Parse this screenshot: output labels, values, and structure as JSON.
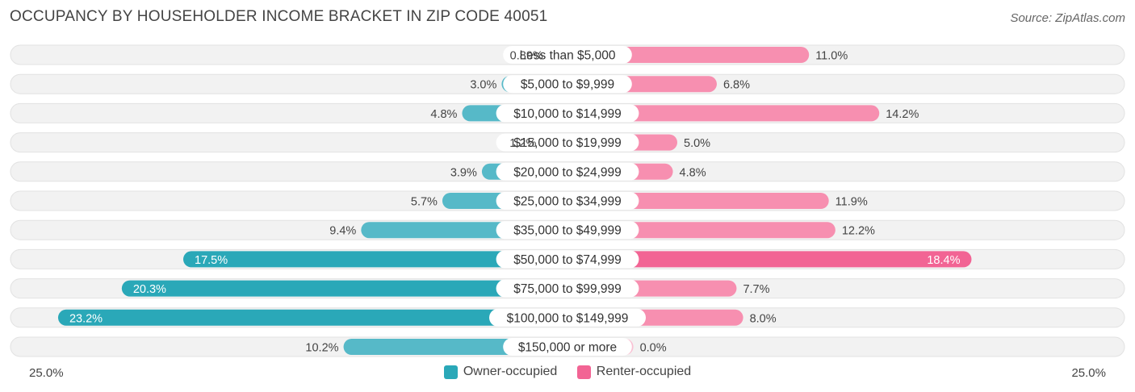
{
  "chart_data": {
    "type": "bar",
    "orientation": "horizontal-diverging",
    "title": "OCCUPANCY BY HOUSEHOLDER INCOME BRACKET IN ZIP CODE 40051",
    "source": "Source: ZipAtlas.com",
    "categories": [
      "Less than $5,000",
      "$5,000 to $9,999",
      "$10,000 to $14,999",
      "$15,000 to $19,999",
      "$20,000 to $24,999",
      "$25,000 to $34,999",
      "$35,000 to $49,999",
      "$50,000 to $74,999",
      "$75,000 to $99,999",
      "$100,000 to $149,999",
      "$150,000 or more"
    ],
    "series": [
      {
        "name": "Owner-occupied",
        "color": "#56b9c8",
        "color_strong": "#2aa8b8",
        "values": [
          0.89,
          3.0,
          4.8,
          1.2,
          3.9,
          5.7,
          9.4,
          17.5,
          20.3,
          23.2,
          10.2
        ],
        "labels": [
          "0.89%",
          "3.0%",
          "4.8%",
          "1.2%",
          "3.9%",
          "5.7%",
          "9.4%",
          "17.5%",
          "20.3%",
          "23.2%",
          "10.2%"
        ]
      },
      {
        "name": "Renter-occupied",
        "color": "#f78fb0",
        "color_strong": "#f26494",
        "values": [
          11.0,
          6.8,
          14.2,
          5.0,
          4.8,
          11.9,
          12.2,
          18.4,
          7.7,
          8.0,
          0.0
        ],
        "labels": [
          "11.0%",
          "6.8%",
          "14.2%",
          "5.0%",
          "4.8%",
          "11.9%",
          "12.2%",
          "18.4%",
          "7.7%",
          "8.0%",
          "0.0%"
        ]
      }
    ],
    "axis": {
      "min_label": "25.0%",
      "max_label": "25.0%",
      "max": 25.0
    },
    "legend_position": "bottom-center"
  }
}
